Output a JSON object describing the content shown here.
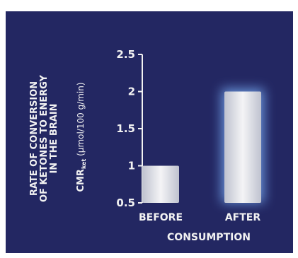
{
  "chart_data": {
    "type": "bar",
    "title": "",
    "ylabel_lines": [
      "RATE OF CONVERSION",
      "OF KETONES TO ENERGY",
      "IN THE BRAIN"
    ],
    "ylabel_unit_main": "CMR",
    "ylabel_unit_sub": "ket",
    "ylabel_unit_rest": " (µmol/100 g/min)",
    "xlabel": "CONSUMPTION",
    "categories": [
      "BEFORE",
      "AFTER"
    ],
    "values": [
      1.0,
      2.0
    ],
    "ylim": [
      0.5,
      2.5
    ],
    "yticks": [
      "0.5",
      "1",
      "1.5",
      "2",
      "2.5"
    ],
    "ytick_values": [
      0.5,
      1,
      1.5,
      2,
      2.5
    ],
    "grid": false,
    "colors": {
      "background": "#232762",
      "bar_light": "#f4f4f6",
      "bar_dark": "#bfc2cf",
      "glow": "#7fb6ff",
      "text": "#f2f2f2"
    }
  }
}
